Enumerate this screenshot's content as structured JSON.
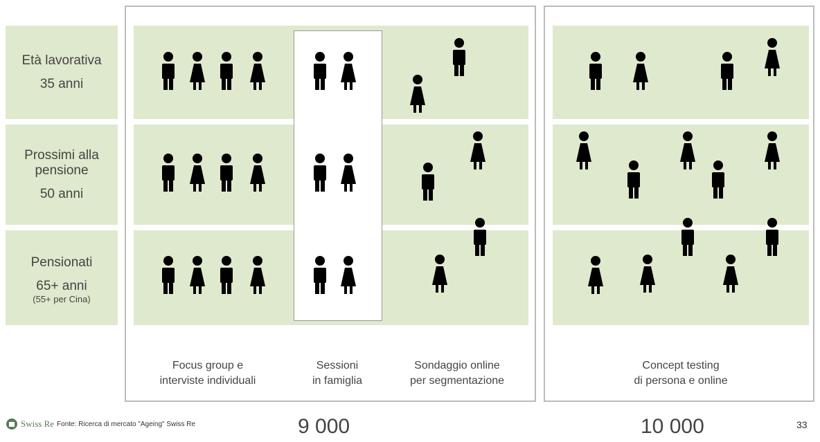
{
  "rows": [
    {
      "label": "Età lavorativa",
      "age": "35 anni"
    },
    {
      "label": "Prossimi alla pensione",
      "age": "50 anni"
    },
    {
      "label": "Pensionati",
      "age": "65+ anni",
      "note": "(55+ per Cina)"
    }
  ],
  "methods": [
    {
      "lines": [
        "Focus group e",
        "interviste individuali"
      ]
    },
    {
      "lines": [
        "Sessioni",
        "in famiglia"
      ]
    },
    {
      "lines": [
        "Sondaggio online",
        "per segmentazione"
      ]
    },
    {
      "lines": [
        "Concept testing",
        "di persona e online"
      ]
    }
  ],
  "totals": [
    "9 000",
    "10 000"
  ],
  "footer": {
    "logo": "Swiss Re",
    "source": "Fonte: Ricerca di mercato \"Ageing\" Swiss Re",
    "page": "33"
  }
}
